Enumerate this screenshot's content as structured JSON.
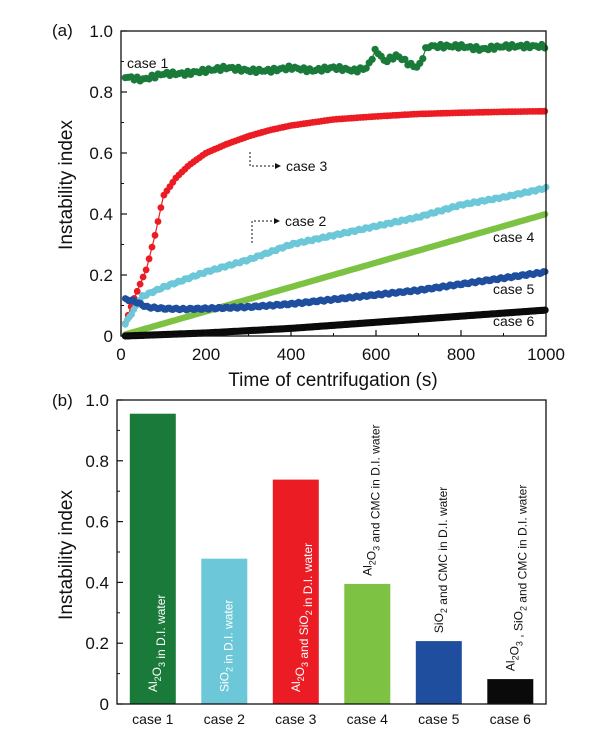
{
  "colors": {
    "case1": "#1a7a3a",
    "case2": "#6cc8d8",
    "case3": "#ec1c24",
    "case4": "#7dc242",
    "case5": "#1f4e9e",
    "case6": "#0a0a0a",
    "axis": "#111111"
  },
  "chart_data": [
    {
      "type": "line",
      "panel": "(a)",
      "xlabel": "Time of centrifugation (s)",
      "ylabel": "Instability index",
      "xlim": [
        0,
        1000
      ],
      "ylim": [
        0,
        1.0
      ],
      "xticks": [
        0,
        200,
        400,
        600,
        800,
        1000
      ],
      "yticks": [
        0,
        0.2,
        0.4,
        0.6,
        0.8,
        1.0
      ],
      "ytick_labels": [
        "0",
        "0.2",
        "0.4",
        "0.6",
        "0.8",
        "1.0"
      ],
      "series": [
        {
          "name": "case 1",
          "color_key": "case1",
          "x": [
            10,
            50,
            100,
            150,
            200,
            250,
            300,
            350,
            400,
            450,
            500,
            550,
            580,
            600,
            620,
            650,
            680,
            700,
            720,
            750,
            800,
            850,
            900,
            950,
            1000
          ],
          "y": [
            0.85,
            0.84,
            0.86,
            0.86,
            0.87,
            0.88,
            0.87,
            0.87,
            0.88,
            0.87,
            0.88,
            0.87,
            0.88,
            0.94,
            0.9,
            0.92,
            0.89,
            0.88,
            0.95,
            0.95,
            0.95,
            0.94,
            0.95,
            0.95,
            0.95
          ]
        },
        {
          "name": "case 3",
          "color_key": "case3",
          "x": [
            10,
            30,
            60,
            80,
            100,
            130,
            160,
            200,
            250,
            300,
            350,
            400,
            450,
            500,
            550,
            600,
            700,
            800,
            900,
            1000
          ],
          "y": [
            0.04,
            0.12,
            0.22,
            0.33,
            0.46,
            0.52,
            0.56,
            0.6,
            0.63,
            0.655,
            0.675,
            0.69,
            0.7,
            0.71,
            0.715,
            0.72,
            0.728,
            0.732,
            0.735,
            0.737
          ]
        },
        {
          "name": "case 2",
          "color_key": "case2",
          "x": [
            10,
            50,
            100,
            200,
            300,
            400,
            500,
            600,
            700,
            800,
            900,
            1000
          ],
          "y": [
            0.04,
            0.13,
            0.16,
            0.21,
            0.25,
            0.3,
            0.33,
            0.36,
            0.39,
            0.43,
            0.455,
            0.485
          ]
        },
        {
          "name": "case 4",
          "color_key": "case4",
          "x": [
            10,
            1000
          ],
          "y": [
            0.005,
            0.4
          ]
        },
        {
          "name": "case 5",
          "color_key": "case5",
          "x": [
            10,
            30,
            60,
            100,
            150,
            200,
            300,
            400,
            500,
            600,
            700,
            800,
            900,
            1000
          ],
          "y": [
            0.12,
            0.115,
            0.095,
            0.09,
            0.088,
            0.09,
            0.095,
            0.105,
            0.12,
            0.135,
            0.15,
            0.17,
            0.19,
            0.21
          ]
        },
        {
          "name": "case 6",
          "color_key": "case6",
          "x": [
            10,
            200,
            400,
            600,
            800,
            1000
          ],
          "y": [
            0.0,
            0.01,
            0.025,
            0.045,
            0.065,
            0.085
          ]
        }
      ],
      "annotations": [
        "case 1",
        "case 3",
        "case 2",
        "case 4",
        "case 5",
        "case 6"
      ]
    },
    {
      "type": "bar",
      "panel": "(b)",
      "ylabel": "Instability index",
      "ylim": [
        0,
        1.0
      ],
      "yticks": [
        0,
        0.2,
        0.4,
        0.6,
        0.8,
        1.0
      ],
      "ytick_labels": [
        "0",
        "0.2",
        "0.4",
        "0.6",
        "0.8",
        "1.0"
      ],
      "categories": [
        "case 1",
        "case 2",
        "case 3",
        "case 4",
        "case 5",
        "case 6"
      ],
      "values": [
        0.955,
        0.478,
        0.738,
        0.395,
        0.207,
        0.082
      ],
      "color_keys": [
        "case1",
        "case2",
        "case3",
        "case4",
        "case5",
        "case6"
      ],
      "bar_labels": [
        "Al2O3 in D.I. water",
        "SiO2 in D.I. water",
        "Al2O3 and SiO2 in D.I. water",
        "Al2O3 and CMC in D.I. water",
        "SiO2 and CMC in D.I. water",
        "Al2O3 , SiO2 and CMC in D.I. water"
      ],
      "bar_label_rich": [
        [
          [
            "Al",
            ""
          ],
          [
            "2",
            "sub"
          ],
          [
            "O",
            ""
          ],
          [
            "3",
            "sub"
          ],
          [
            " in D.I. water",
            ""
          ]
        ],
        [
          [
            "SiO",
            ""
          ],
          [
            "2",
            "sub"
          ],
          [
            " in D.I. water",
            ""
          ]
        ],
        [
          [
            "Al",
            ""
          ],
          [
            "2",
            "sub"
          ],
          [
            "O",
            ""
          ],
          [
            "3",
            "sub"
          ],
          [
            " and SiO",
            ""
          ],
          [
            "2",
            "sub"
          ],
          [
            " in D.I. water",
            ""
          ]
        ],
        [
          [
            "Al",
            ""
          ],
          [
            "2",
            "sub"
          ],
          [
            "O",
            ""
          ],
          [
            "3",
            "sub"
          ],
          [
            " and CMC in D.I. water",
            ""
          ]
        ],
        [
          [
            "SiO",
            ""
          ],
          [
            "2",
            "sub"
          ],
          [
            " and CMC in D.I. water",
            ""
          ]
        ],
        [
          [
            "Al",
            ""
          ],
          [
            "2",
            "sub"
          ],
          [
            "O",
            ""
          ],
          [
            "3",
            "sub"
          ],
          [
            " , SiO",
            ""
          ],
          [
            "2",
            "sub"
          ],
          [
            " and CMC in D.I. water",
            ""
          ]
        ]
      ]
    }
  ]
}
